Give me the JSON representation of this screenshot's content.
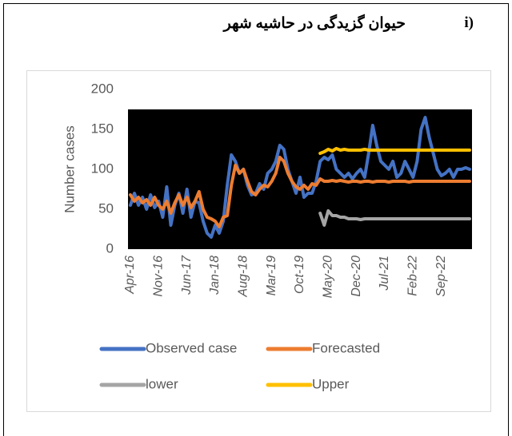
{
  "header": {
    "label": "i)",
    "title": "حیوان گزیدگی در حاشیه شهر"
  },
  "chart_data": {
    "type": "line",
    "ylabel": "Number cases",
    "ylim": [
      0,
      200
    ],
    "yticks": [
      0,
      50,
      100,
      150,
      200
    ],
    "categories": [
      "Apr-16",
      null,
      null,
      null,
      null,
      null,
      null,
      "Nov-16",
      null,
      null,
      null,
      null,
      null,
      null,
      "Jun-17",
      null,
      null,
      null,
      null,
      null,
      null,
      "Jan-18",
      null,
      null,
      null,
      null,
      null,
      null,
      "Aug-18",
      null,
      null,
      null,
      null,
      null,
      null,
      "Mar-19",
      null,
      null,
      null,
      null,
      null,
      null,
      "Oct-19",
      null,
      null,
      null,
      null,
      null,
      null,
      "May-20",
      null,
      null,
      null,
      null,
      null,
      null,
      "Dec-20",
      null,
      null,
      null,
      null,
      null,
      null,
      "Jul-21",
      null,
      null,
      null,
      null,
      null,
      null,
      "Feb-22",
      null,
      null,
      null,
      null,
      null,
      null,
      "Sep-22",
      null,
      null,
      null,
      null,
      null,
      null,
      null
    ],
    "series": [
      {
        "name": "Observed case",
        "color": "#4472c4",
        "values": [
          55,
          70,
          55,
          65,
          50,
          68,
          52,
          60,
          40,
          78,
          30,
          55,
          70,
          45,
          75,
          40,
          60,
          58,
          35,
          20,
          15,
          30,
          20,
          35,
          80,
          118,
          110,
          95,
          100,
          80,
          68,
          70,
          82,
          75,
          95,
          100,
          110,
          130,
          125,
          100,
          85,
          70,
          90,
          65,
          70,
          70,
          85,
          110,
          115,
          112,
          118,
          100,
          95,
          90,
          95,
          88,
          95,
          100,
          90,
          120,
          155,
          130,
          110,
          105,
          100,
          110,
          90,
          95,
          110,
          100,
          90,
          110,
          150,
          165,
          140,
          120,
          100,
          92,
          95,
          100,
          90,
          100,
          100,
          102,
          100
        ]
      },
      {
        "name": "Forecasted",
        "color": "#ed7d31",
        "values": [
          68,
          60,
          65,
          58,
          62,
          55,
          65,
          55,
          50,
          60,
          45,
          58,
          68,
          55,
          65,
          52,
          60,
          72,
          50,
          40,
          38,
          35,
          28,
          40,
          42,
          80,
          105,
          95,
          100,
          85,
          72,
          68,
          75,
          80,
          78,
          85,
          95,
          115,
          110,
          95,
          85,
          78,
          75,
          80,
          75,
          82,
          80,
          88,
          85,
          85,
          86,
          85,
          86,
          85,
          84,
          85,
          85,
          84,
          85,
          85,
          84,
          85,
          85,
          85,
          84,
          85,
          85,
          85,
          85,
          84,
          85,
          85,
          85,
          85,
          85,
          85,
          85,
          85,
          85,
          85,
          85,
          85,
          85,
          85,
          85
        ]
      },
      {
        "name": "lower",
        "color": "#a5a5a5",
        "values": [
          null,
          null,
          null,
          null,
          null,
          null,
          null,
          null,
          null,
          null,
          null,
          null,
          null,
          null,
          null,
          null,
          null,
          null,
          null,
          null,
          null,
          null,
          null,
          null,
          null,
          null,
          null,
          null,
          null,
          null,
          null,
          null,
          null,
          null,
          null,
          null,
          null,
          null,
          null,
          null,
          null,
          null,
          null,
          null,
          null,
          null,
          null,
          45,
          30,
          48,
          42,
          42,
          40,
          40,
          38,
          38,
          38,
          37,
          38,
          38,
          38,
          38,
          38,
          38,
          38,
          38,
          38,
          38,
          38,
          38,
          38,
          38,
          38,
          38,
          38,
          38,
          38,
          38,
          38,
          38,
          38,
          38,
          38,
          38,
          38
        ]
      },
      {
        "name": "Upper",
        "color": "#ffc000",
        "values": [
          null,
          null,
          null,
          null,
          null,
          null,
          null,
          null,
          null,
          null,
          null,
          null,
          null,
          null,
          null,
          null,
          null,
          null,
          null,
          null,
          null,
          null,
          null,
          null,
          null,
          null,
          null,
          null,
          null,
          null,
          null,
          null,
          null,
          null,
          null,
          null,
          null,
          null,
          null,
          null,
          null,
          null,
          null,
          null,
          null,
          null,
          null,
          120,
          122,
          125,
          123,
          126,
          124,
          125,
          124,
          124,
          124,
          124,
          125,
          124,
          124,
          124,
          124,
          124,
          124,
          124,
          124,
          124,
          124,
          124,
          124,
          124,
          124,
          124,
          124,
          124,
          124,
          124,
          124,
          124,
          124,
          124,
          124,
          124,
          124
        ]
      }
    ]
  }
}
